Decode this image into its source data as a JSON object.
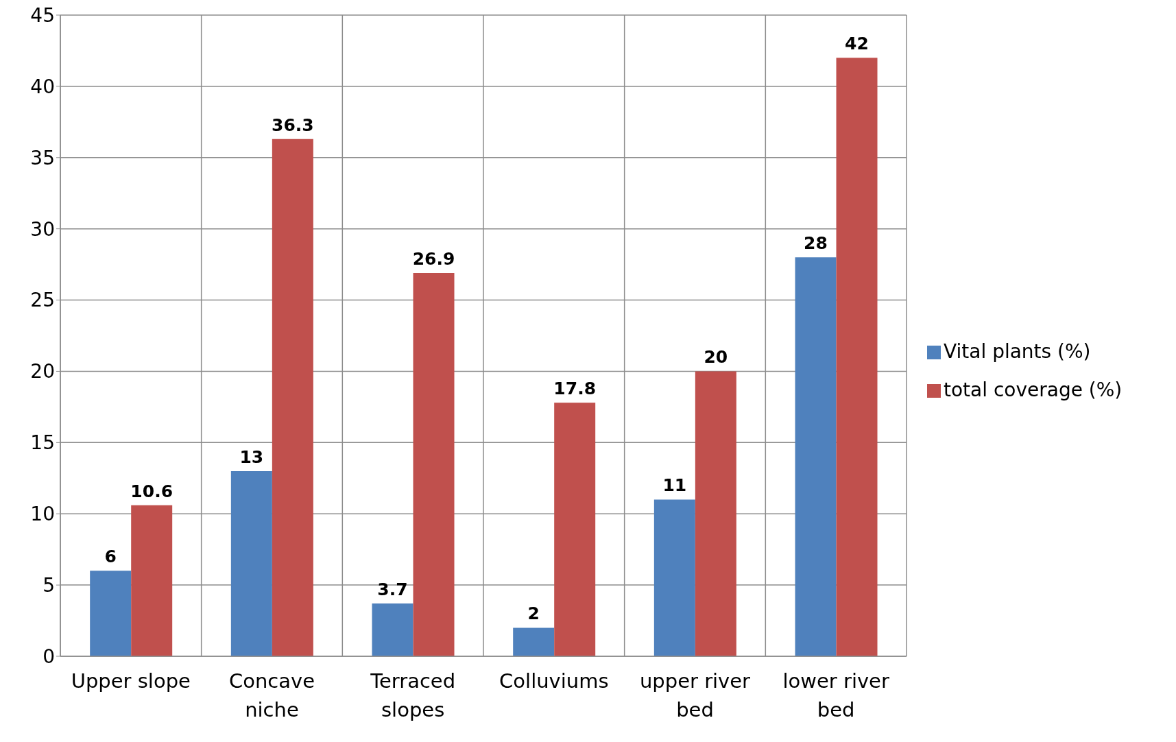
{
  "chart_data": {
    "type": "bar",
    "categories": [
      "Upper slope",
      "Concave niche",
      "Terraced slopes",
      "Colluviums",
      "upper river bed",
      "lower river bed"
    ],
    "series": [
      {
        "name": "Vital plants (%)",
        "color": "#4f81bd",
        "values": [
          6,
          13,
          3.7,
          2,
          11,
          28
        ]
      },
      {
        "name": "total coverage (%)",
        "color": "#c0504d",
        "values": [
          10.6,
          36.3,
          26.9,
          17.8,
          20,
          42
        ]
      }
    ],
    "ylim": [
      0,
      45
    ],
    "yticks": [
      0,
      5,
      10,
      15,
      20,
      25,
      30,
      35,
      40,
      45
    ],
    "grid": true,
    "legend": "right",
    "data_labels": true
  }
}
